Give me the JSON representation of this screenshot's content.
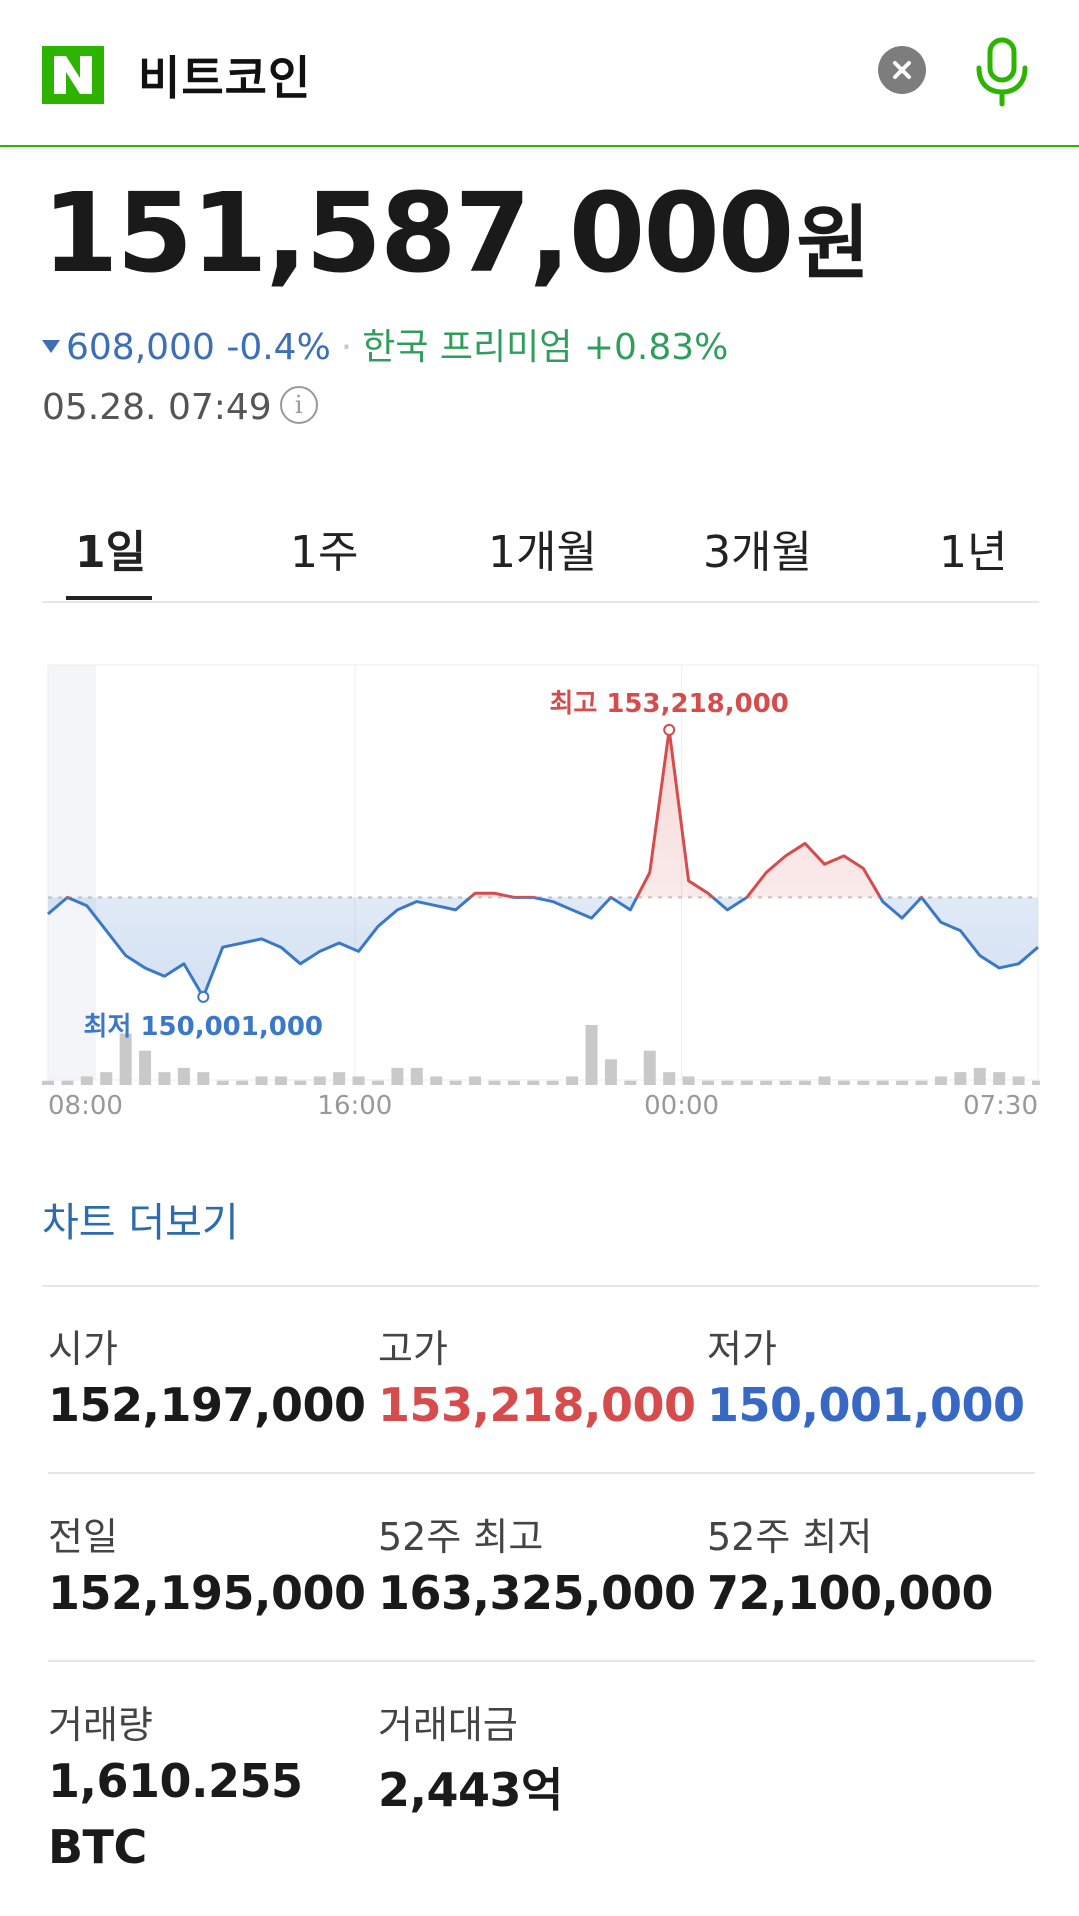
{
  "header": {
    "logo_letter": "N",
    "query": "비트코인",
    "colors": {
      "brand": "#2db400",
      "line": "#2db400"
    }
  },
  "quote": {
    "price": "151,587,000",
    "unit": "원",
    "change": "608,000",
    "change_pct": "-0.4%",
    "premium": "한국 프리미엄 +0.83%",
    "timestamp": "05.28. 07:49",
    "colors": {
      "down": "#3b6fb6",
      "premium": "#2f9e5c"
    }
  },
  "tabs": [
    {
      "label": "1일",
      "active": true
    },
    {
      "label": "1주",
      "active": false
    },
    {
      "label": "1개월",
      "active": false
    },
    {
      "label": "3개월",
      "active": false
    },
    {
      "label": "1년",
      "active": false
    }
  ],
  "chart_data": {
    "type": "line",
    "x_ticks": [
      "08:00",
      "16:00",
      "00:00",
      "07:30"
    ],
    "reference_price": 151200000,
    "ylim": [
      149000000,
      154000000
    ],
    "high": {
      "label": "최고 153,218,000",
      "value": 153218000
    },
    "low": {
      "label": "최저 150,001,000",
      "value": 150001000
    },
    "colors": {
      "above": "#d64b4b",
      "below": "#3b78c8",
      "volume": "#c9c9c9",
      "grid": "#eeeeee"
    },
    "series": [
      {
        "values": [
          151000000,
          151200000,
          151100000,
          150800000,
          150500000,
          150350000,
          150250000,
          150400000,
          150001000,
          150600000,
          150650000,
          150700000,
          150600000,
          150400000,
          150550000,
          150650000,
          150550000,
          150850000,
          151050000,
          151150000,
          151100000,
          151050000,
          151250000,
          151250000,
          151200000,
          151200000,
          151150000,
          151050000,
          150950000,
          151200000,
          151050000,
          151500000,
          153218000,
          151400000,
          151250000,
          151050000,
          151200000,
          151500000,
          151700000,
          151850000,
          151600000,
          151700000,
          151550000,
          151150000,
          150950000,
          151200000,
          150900000,
          150800000,
          150500000,
          150350000,
          150400000,
          150600000
        ]
      }
    ],
    "volume": [
      1,
      1,
      2,
      3,
      12,
      8,
      3,
      4,
      3,
      1,
      1,
      2,
      2,
      1,
      2,
      3,
      2,
      1,
      4,
      4,
      2,
      1,
      2,
      1,
      1,
      1,
      1,
      2,
      14,
      6,
      1,
      8,
      3,
      2,
      1,
      1,
      1,
      1,
      1,
      1,
      2,
      1,
      1,
      1,
      1,
      1,
      2,
      3,
      4,
      3,
      2,
      1
    ]
  },
  "chart_more": "차트 더보기",
  "stats": [
    {
      "label": "시가",
      "value": "152,197,000",
      "tone": "default"
    },
    {
      "label": "고가",
      "value": "153,218,000",
      "tone": "red"
    },
    {
      "label": "저가",
      "value": "150,001,000",
      "tone": "blue"
    },
    {
      "label": "전일",
      "value": "152,195,000",
      "tone": "default"
    },
    {
      "label": "52주 최고",
      "value": "163,325,000",
      "tone": "default"
    },
    {
      "label": "52주 최저",
      "value": "72,100,000",
      "tone": "default"
    },
    {
      "label": "거래량",
      "value": "1,610.255",
      "value2": "BTC",
      "tone": "default"
    },
    {
      "label": "거래대금",
      "value": "2,443억",
      "tone": "default"
    }
  ]
}
